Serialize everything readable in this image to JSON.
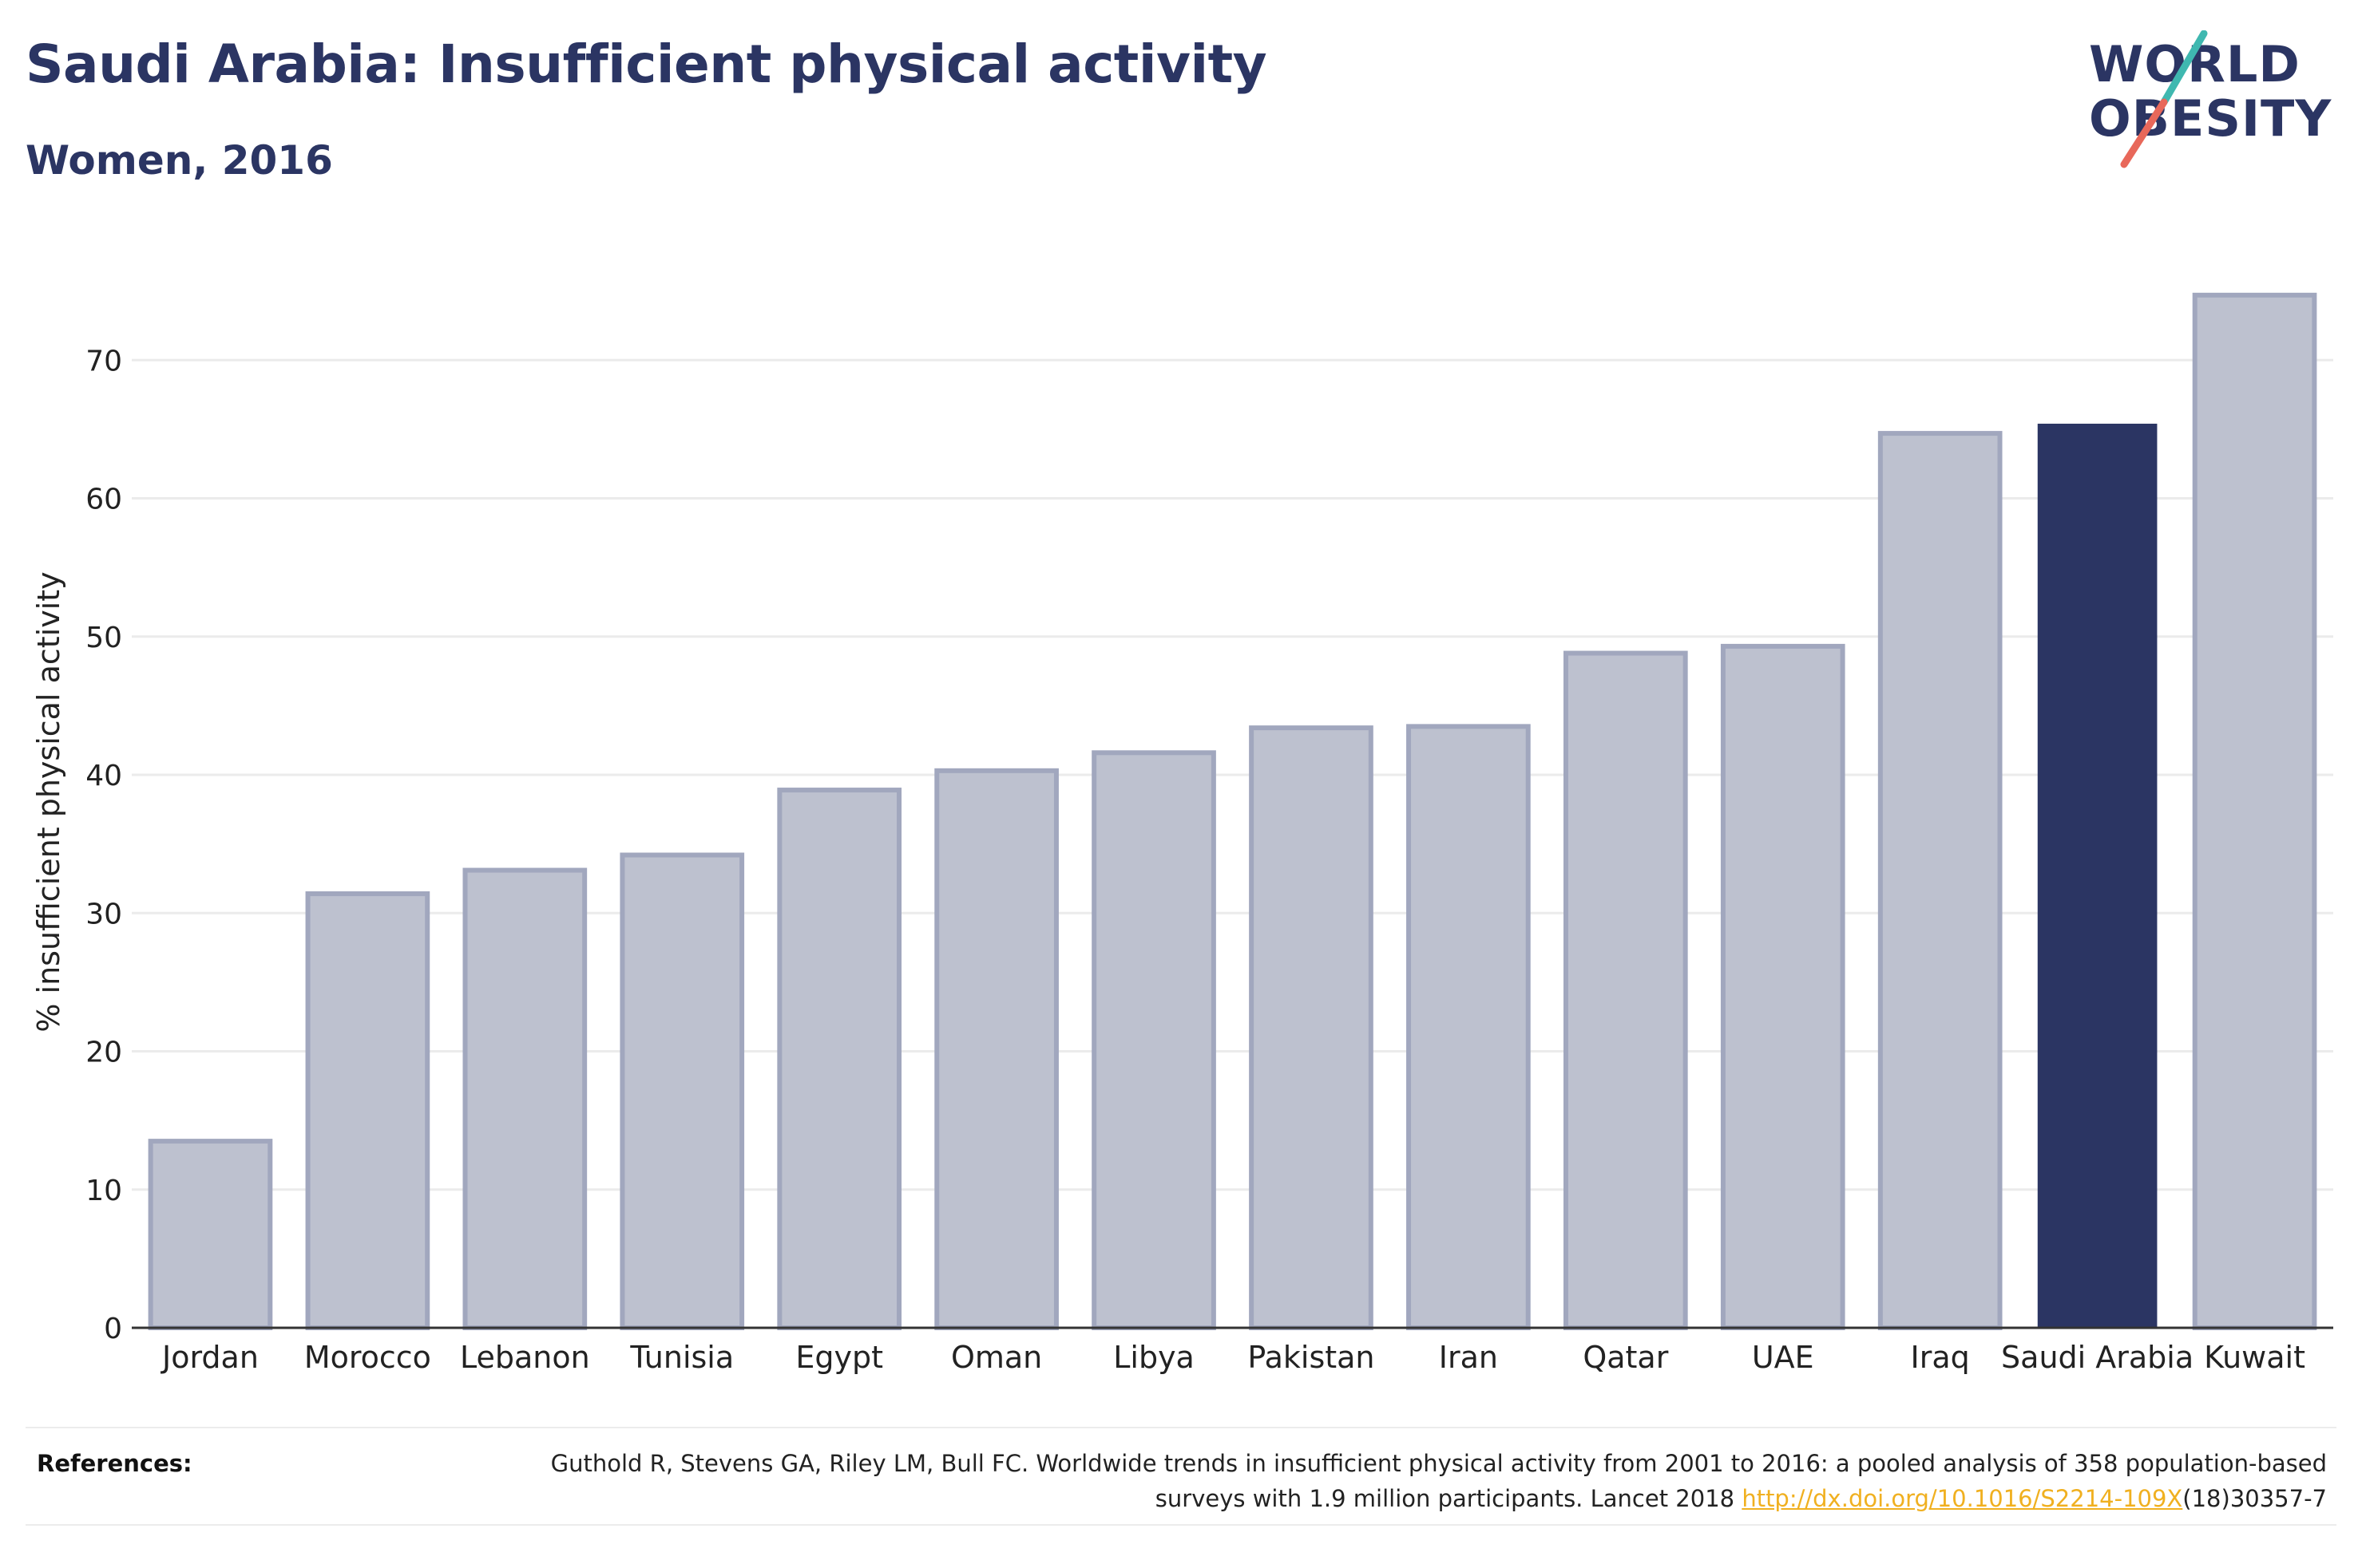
{
  "header": {
    "title": "Saudi Arabia: Insufficient physical activity",
    "subtitle": "Women, 2016"
  },
  "logo": {
    "line1": "WORLD",
    "line2": "OBESITY"
  },
  "colors": {
    "bar": "#bdc1cf",
    "bar_border": "#a1a7be",
    "highlight": "#2b3563",
    "grid": "#ebebeb",
    "axis": "#333333"
  },
  "chart_data": {
    "type": "bar",
    "categories": [
      "Jordan",
      "Morocco",
      "Lebanon",
      "Tunisia",
      "Egypt",
      "Oman",
      "Libya",
      "Pakistan",
      "Iran",
      "Qatar",
      "UAE",
      "Iraq",
      "Saudi Arabia",
      "Kuwait"
    ],
    "values": [
      13.5,
      31.4,
      33.1,
      34.2,
      38.9,
      40.3,
      41.6,
      43.4,
      43.5,
      48.8,
      49.3,
      64.7,
      65.4,
      74.7
    ],
    "highlight": "Saudi Arabia",
    "title": "Saudi Arabia: Insufficient physical activity",
    "subtitle": "Women, 2016",
    "xlabel": "",
    "ylabel": "% insufficient physical activity",
    "ylim": [
      0,
      77
    ],
    "yticks": [
      0,
      10,
      20,
      30,
      40,
      50,
      60,
      70
    ],
    "grid": true,
    "legend": "none"
  },
  "references": {
    "label": "References:",
    "text_before": "Guthold R, Stevens GA, Riley LM, Bull FC. Worldwide trends in insufficient physical activity from 2001 to 2016: a pooled analysis of 358 population-based surveys with 1.9 million participants. Lancet 2018 ",
    "link": "http://dx.doi.org/10.1016/S2214-109X",
    "text_after": "(18)30357-7"
  }
}
